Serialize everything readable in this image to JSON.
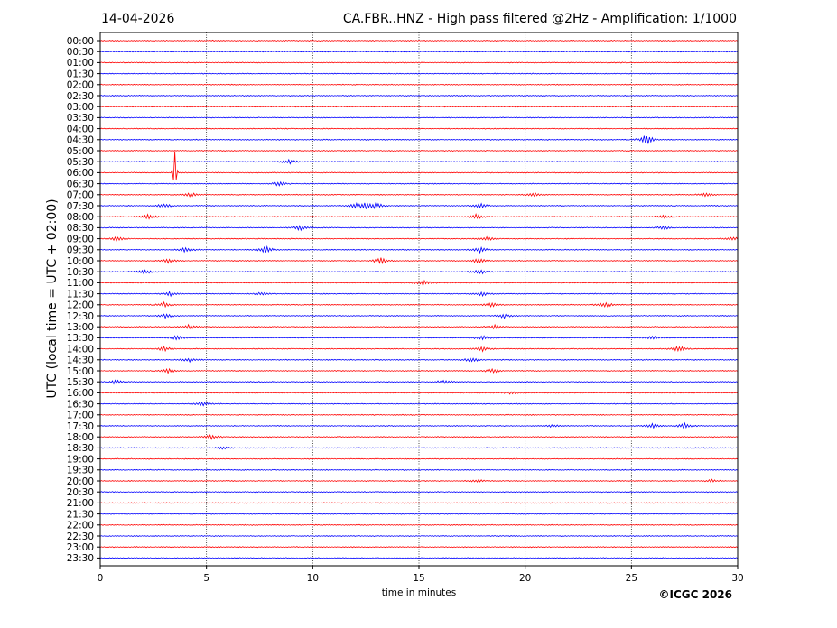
{
  "chart_data": {
    "type": "line",
    "date": "14-04-2026",
    "title": "CA.FBR..HNZ - High pass filtered @2Hz - Amplification: 1/1000",
    "xlabel": "time in minutes",
    "ylabel": "UTC (local time = UTC + 02:00)",
    "copyright": "©ICGC 2026",
    "xlim": [
      0,
      30
    ],
    "xticks": [
      "0",
      "5",
      "10",
      "15",
      "20",
      "25",
      "30"
    ],
    "xgrid": [
      5,
      10,
      15,
      20,
      25
    ],
    "grid": true,
    "trace_colors": [
      "#ff0000",
      "#0000ff"
    ],
    "rows": [
      "00:00",
      "00:30",
      "01:00",
      "01:30",
      "02:00",
      "02:30",
      "03:00",
      "03:30",
      "04:00",
      "04:30",
      "05:00",
      "05:30",
      "06:00",
      "06:30",
      "07:00",
      "07:30",
      "08:00",
      "08:30",
      "09:00",
      "09:30",
      "10:00",
      "10:30",
      "11:00",
      "11:30",
      "12:00",
      "12:30",
      "13:00",
      "13:30",
      "14:00",
      "14:30",
      "15:00",
      "15:30",
      "16:00",
      "16:30",
      "17:00",
      "17:30",
      "18:00",
      "18:30",
      "19:00",
      "19:30",
      "20:00",
      "20:30",
      "21:00",
      "21:30",
      "22:00",
      "22:30",
      "23:00",
      "23:30"
    ],
    "events": [
      {
        "row": "04:30",
        "minute": 25.7,
        "amp": 6
      },
      {
        "row": "05:30",
        "minute": 8.9,
        "amp": 2.5
      },
      {
        "row": "06:00",
        "minute": 3.5,
        "amp": 35
      },
      {
        "row": "06:30",
        "minute": 8.4,
        "amp": 2.5
      },
      {
        "row": "07:00",
        "minute": 4.3,
        "amp": 2.5
      },
      {
        "row": "07:00",
        "minute": 20.4,
        "amp": 2
      },
      {
        "row": "07:00",
        "minute": 28.5,
        "amp": 2
      },
      {
        "row": "07:30",
        "minute": 3.0,
        "amp": 2.5
      },
      {
        "row": "07:30",
        "minute": 12.0,
        "amp": 3
      },
      {
        "row": "07:30",
        "minute": 12.5,
        "amp": 3
      },
      {
        "row": "07:30",
        "minute": 13.0,
        "amp": 3
      },
      {
        "row": "07:30",
        "minute": 17.9,
        "amp": 2.5
      },
      {
        "row": "08:00",
        "minute": 2.3,
        "amp": 3
      },
      {
        "row": "08:00",
        "minute": 17.7,
        "amp": 3
      },
      {
        "row": "08:00",
        "minute": 26.5,
        "amp": 2
      },
      {
        "row": "08:30",
        "minute": 9.4,
        "amp": 3
      },
      {
        "row": "08:30",
        "minute": 26.5,
        "amp": 2
      },
      {
        "row": "09:00",
        "minute": 0.8,
        "amp": 2.5
      },
      {
        "row": "09:00",
        "minute": 18.2,
        "amp": 2.5
      },
      {
        "row": "09:00",
        "minute": 29.8,
        "amp": 2
      },
      {
        "row": "09:30",
        "minute": 4.0,
        "amp": 2.5
      },
      {
        "row": "09:30",
        "minute": 7.8,
        "amp": 4
      },
      {
        "row": "09:30",
        "minute": 17.9,
        "amp": 3
      },
      {
        "row": "10:00",
        "minute": 3.2,
        "amp": 2.5
      },
      {
        "row": "10:00",
        "minute": 13.2,
        "amp": 3.5
      },
      {
        "row": "10:00",
        "minute": 17.8,
        "amp": 3
      },
      {
        "row": "10:30",
        "minute": 2.1,
        "amp": 2.5
      },
      {
        "row": "10:30",
        "minute": 17.9,
        "amp": 3
      },
      {
        "row": "11:00",
        "minute": 15.2,
        "amp": 3
      },
      {
        "row": "11:30",
        "minute": 3.3,
        "amp": 2.5
      },
      {
        "row": "11:30",
        "minute": 7.6,
        "amp": 2
      },
      {
        "row": "11:30",
        "minute": 18.0,
        "amp": 2.5
      },
      {
        "row": "12:00",
        "minute": 3.0,
        "amp": 2.5
      },
      {
        "row": "12:00",
        "minute": 18.4,
        "amp": 2.5
      },
      {
        "row": "12:00",
        "minute": 23.8,
        "amp": 3
      },
      {
        "row": "12:30",
        "minute": 3.1,
        "amp": 2.5
      },
      {
        "row": "12:30",
        "minute": 19.0,
        "amp": 2.5
      },
      {
        "row": "13:00",
        "minute": 4.2,
        "amp": 2.5
      },
      {
        "row": "13:00",
        "minute": 18.6,
        "amp": 2.5
      },
      {
        "row": "13:30",
        "minute": 3.6,
        "amp": 2.5
      },
      {
        "row": "13:30",
        "minute": 18.0,
        "amp": 2.5
      },
      {
        "row": "13:30",
        "minute": 26.0,
        "amp": 2.5
      },
      {
        "row": "14:00",
        "minute": 3.0,
        "amp": 2.5
      },
      {
        "row": "14:00",
        "minute": 18.0,
        "amp": 2.5
      },
      {
        "row": "14:00",
        "minute": 27.2,
        "amp": 3.5
      },
      {
        "row": "14:30",
        "minute": 4.2,
        "amp": 2.5
      },
      {
        "row": "14:30",
        "minute": 17.5,
        "amp": 2.5
      },
      {
        "row": "15:00",
        "minute": 3.2,
        "amp": 2.5
      },
      {
        "row": "15:00",
        "minute": 18.5,
        "amp": 2.5
      },
      {
        "row": "15:30",
        "minute": 0.7,
        "amp": 2.5
      },
      {
        "row": "15:30",
        "minute": 16.2,
        "amp": 2.5
      },
      {
        "row": "16:00",
        "minute": 19.3,
        "amp": 1.5
      },
      {
        "row": "16:30",
        "minute": 4.8,
        "amp": 2.5
      },
      {
        "row": "17:30",
        "minute": 21.3,
        "amp": 1.5
      },
      {
        "row": "17:30",
        "minute": 26.0,
        "amp": 2.5
      },
      {
        "row": "17:30",
        "minute": 27.5,
        "amp": 3
      },
      {
        "row": "18:00",
        "minute": 5.2,
        "amp": 2.5
      },
      {
        "row": "18:30",
        "minute": 5.8,
        "amp": 1.5
      },
      {
        "row": "20:00",
        "minute": 17.8,
        "amp": 1.5
      },
      {
        "row": "20:00",
        "minute": 28.8,
        "amp": 1.5
      }
    ]
  }
}
